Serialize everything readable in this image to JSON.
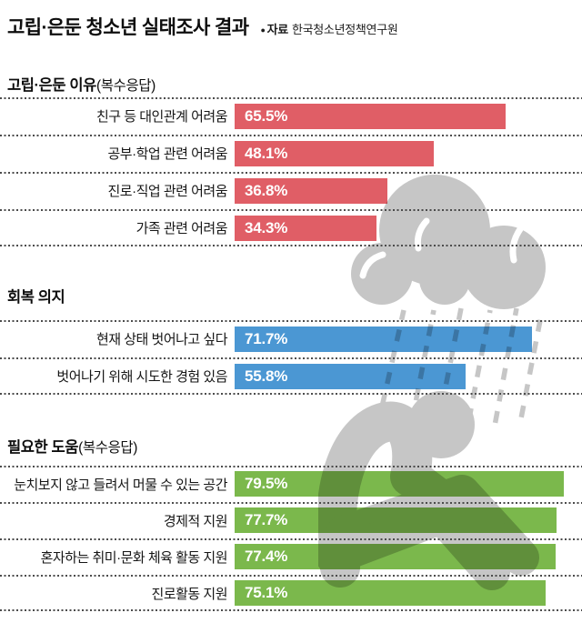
{
  "page_title": "고립·은둔 청소년 실태조사 결과",
  "source": {
    "bullet": "●",
    "label": "자료",
    "name": "한국청소년정책연구원"
  },
  "illustration": {
    "name": "rain-cloud-over-crouching-person",
    "color": "#c6c6c6"
  },
  "chart_data": [
    {
      "type": "bar",
      "orientation": "horizontal",
      "section_title": "고립·은둔 이유",
      "section_title_suffix": "(복수응답)",
      "categories": [
        "친구 등 대인관계 어려움",
        "공부·학업 관련 어려움",
        "진로·직업 관련 어려움",
        "가족 관련 어려움"
      ],
      "values": [
        65.5,
        48.1,
        36.8,
        34.3
      ],
      "value_labels": [
        "65.5%",
        "48.1%",
        "36.8%",
        "34.3%"
      ],
      "bar_color": "#e05e66",
      "xlim": [
        0,
        100
      ],
      "grid": false,
      "legend": "none"
    },
    {
      "type": "bar",
      "orientation": "horizontal",
      "section_title": "회복 의지",
      "section_title_suffix": "",
      "categories": [
        "현재 상태 벗어나고 싶다",
        "벗어나기 위해 시도한 경험 있음"
      ],
      "values": [
        71.7,
        55.8
      ],
      "value_labels": [
        "71.7%",
        "55.8%"
      ],
      "bar_color": "#4b97d3",
      "xlim": [
        0,
        100
      ],
      "grid": false,
      "legend": "none"
    },
    {
      "type": "bar",
      "orientation": "horizontal",
      "section_title": "필요한 도움",
      "section_title_suffix": "(복수응답)",
      "categories": [
        "눈치보지 않고 들려서 머물 수 있는 공간",
        "경제적 지원",
        "혼자하는 취미·문화 체육 활동 지원",
        "진로활동 지원"
      ],
      "values": [
        79.5,
        77.7,
        77.4,
        75.1
      ],
      "value_labels": [
        "79.5%",
        "77.7%",
        "77.4%",
        "75.1%"
      ],
      "bar_color": "#7bb84c",
      "xlim": [
        0,
        100
      ],
      "grid": false,
      "legend": "none"
    }
  ]
}
